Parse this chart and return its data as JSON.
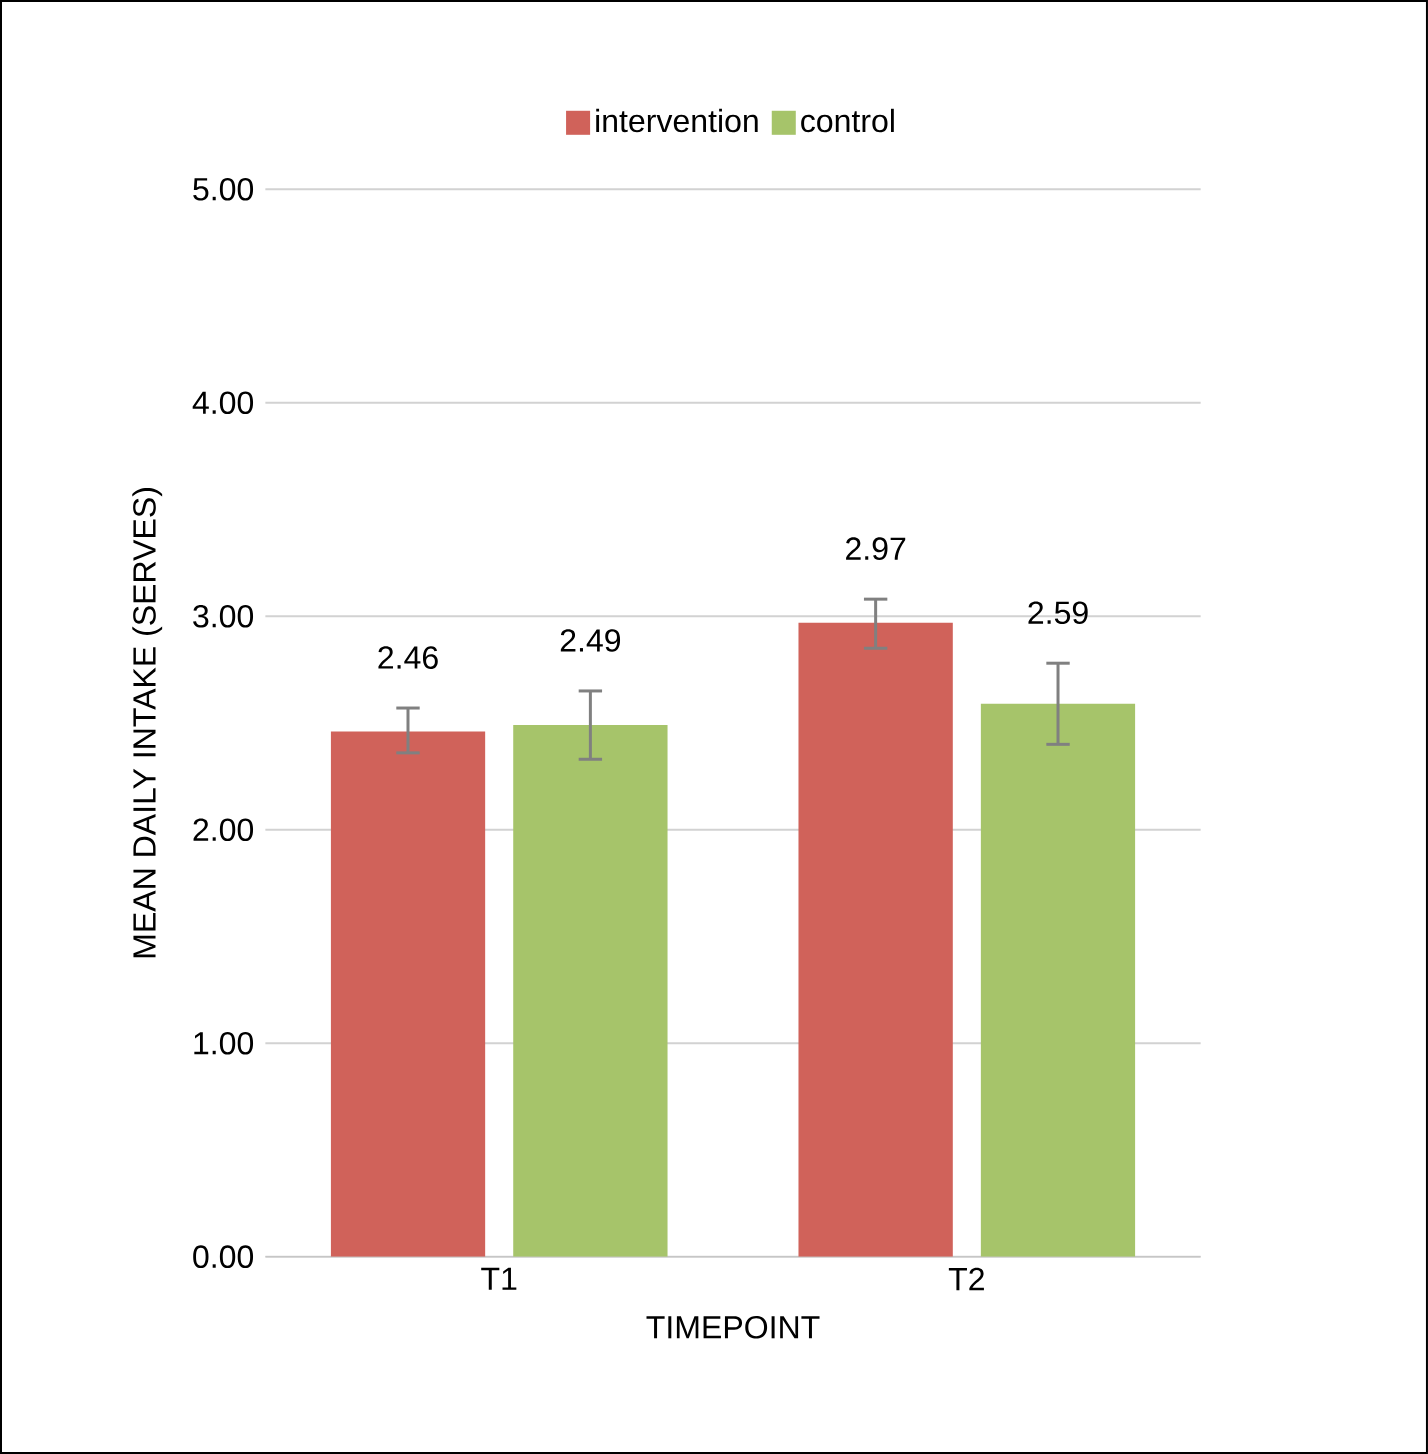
{
  "chart_data": {
    "type": "bar",
    "categories": [
      "T1",
      "T2"
    ],
    "xlabel": "TIMEPOINT",
    "ylabel": "MEAN DAILY INTAKE (SERVES)",
    "series": [
      {
        "name": "intervention",
        "color": "#d0625a",
        "values": [
          2.46,
          2.97
        ],
        "errors": [
          [
            2.36,
            2.57
          ],
          [
            2.85,
            3.08
          ]
        ]
      },
      {
        "name": "control",
        "color": "#a6c46a",
        "values": [
          2.49,
          2.59
        ],
        "errors": [
          [
            2.33,
            2.65
          ],
          [
            2.4,
            2.78
          ]
        ]
      }
    ],
    "ylim": [
      0,
      5
    ],
    "yticks": [
      {
        "value": 0,
        "label": "0.00"
      },
      {
        "value": 1,
        "label": "1.00"
      },
      {
        "value": 2,
        "label": "2.00"
      },
      {
        "value": 3,
        "label": "3.00"
      },
      {
        "value": 4,
        "label": "4.00"
      },
      {
        "value": 5,
        "label": "5.00"
      }
    ],
    "grid": "y",
    "legend": "top",
    "data_labels": true
  }
}
